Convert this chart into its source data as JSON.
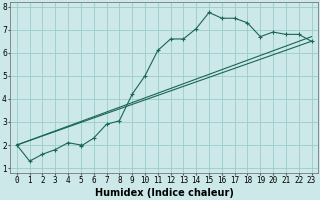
{
  "title": "",
  "xlabel": "Humidex (Indice chaleur)",
  "bg_color": "#cce8e8",
  "grid_color": "#99cccc",
  "line_color": "#1a6655",
  "xlim": [
    -0.5,
    23.5
  ],
  "ylim": [
    0.8,
    8.2
  ],
  "xticks": [
    0,
    1,
    2,
    3,
    4,
    5,
    6,
    7,
    8,
    9,
    10,
    11,
    12,
    13,
    14,
    15,
    16,
    17,
    18,
    19,
    20,
    21,
    22,
    23
  ],
  "yticks": [
    1,
    2,
    3,
    4,
    5,
    6,
    7,
    8
  ],
  "line1_x": [
    0,
    1,
    2,
    3,
    4,
    5,
    5,
    6,
    7,
    8,
    9,
    10,
    11,
    12,
    13,
    14,
    15,
    16,
    17,
    18,
    19,
    20,
    21,
    22,
    23
  ],
  "line1_y": [
    2.0,
    1.3,
    1.6,
    1.8,
    2.1,
    2.0,
    1.95,
    2.3,
    2.9,
    3.05,
    4.2,
    5.0,
    6.1,
    6.6,
    6.6,
    7.05,
    7.75,
    7.5,
    7.5,
    7.3,
    6.7,
    6.9,
    6.8,
    6.8,
    6.5
  ],
  "line2_x": [
    0,
    23
  ],
  "line2_y": [
    2.0,
    6.5
  ],
  "line3_x": [
    0,
    23
  ],
  "line3_y": [
    2.0,
    6.7
  ],
  "xlabel_fontsize": 7,
  "tick_fontsize": 5.5
}
